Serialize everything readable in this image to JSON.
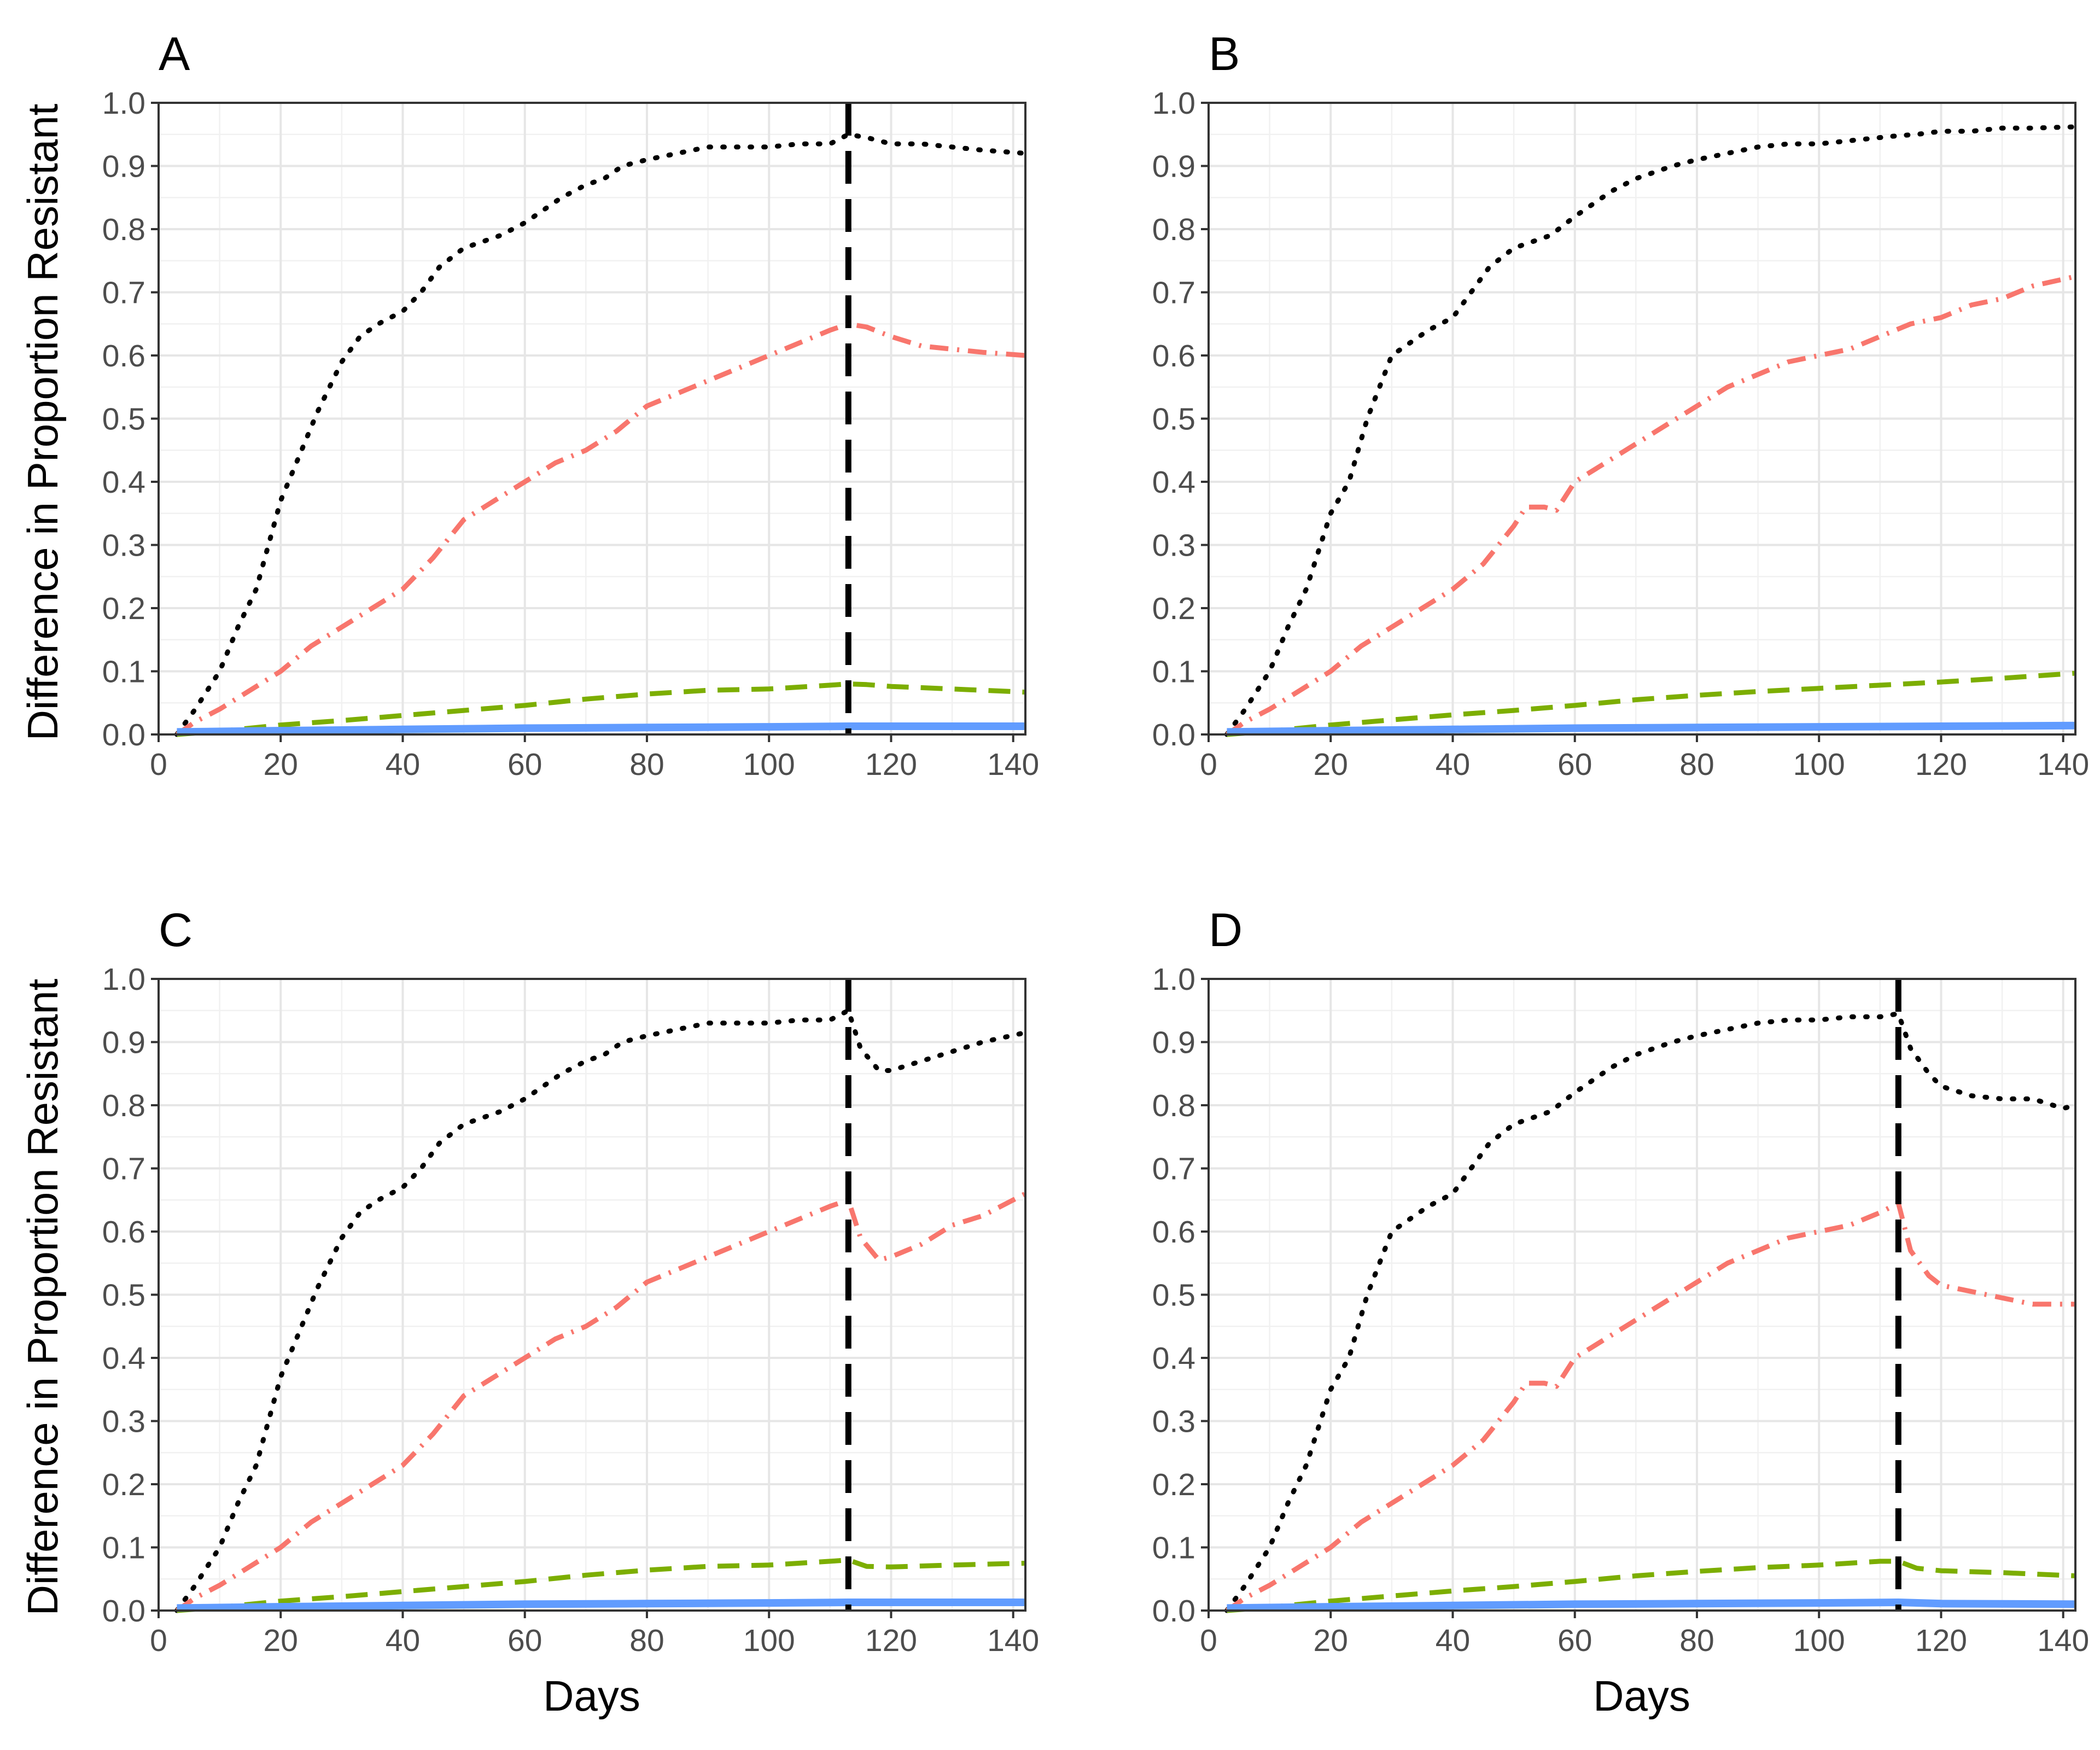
{
  "figure": {
    "y_axis_title": "Difference in Proportion Resistant",
    "x_axis_title": "Days"
  },
  "chart_data": [
    {
      "panel": "A",
      "type": "line",
      "xlim": [
        0,
        142
      ],
      "ylim": [
        0,
        1.0
      ],
      "x_ticks": [
        0,
        20,
        40,
        60,
        80,
        100,
        120,
        140
      ],
      "y_ticks": [
        0.0,
        0.1,
        0.2,
        0.3,
        0.4,
        0.5,
        0.6,
        0.7,
        0.8,
        0.9,
        1.0
      ],
      "vline_x": 113,
      "series": [
        {
          "color": "#000000",
          "dash": "dotted",
          "x": [
            3,
            6,
            10,
            13,
            16,
            20,
            23,
            26,
            30,
            33,
            36,
            40,
            43,
            46,
            50,
            53,
            56,
            60,
            63,
            66,
            70,
            73,
            76,
            80,
            85,
            90,
            95,
            100,
            105,
            110,
            113,
            116,
            120,
            125,
            130,
            135,
            142
          ],
          "y": [
            0,
            0.04,
            0.1,
            0.17,
            0.23,
            0.37,
            0.44,
            0.51,
            0.59,
            0.63,
            0.65,
            0.67,
            0.7,
            0.74,
            0.77,
            0.78,
            0.79,
            0.81,
            0.83,
            0.85,
            0.87,
            0.88,
            0.9,
            0.91,
            0.92,
            0.93,
            0.93,
            0.93,
            0.935,
            0.935,
            0.95,
            0.945,
            0.935,
            0.935,
            0.93,
            0.925,
            0.92
          ]
        },
        {
          "color": "#f8766d",
          "dash": "dotdash",
          "x": [
            3,
            6,
            10,
            15,
            20,
            25,
            30,
            35,
            40,
            45,
            50,
            55,
            60,
            65,
            70,
            75,
            80,
            85,
            90,
            95,
            100,
            105,
            110,
            113,
            116,
            120,
            125,
            130,
            135,
            142
          ],
          "y": [
            0,
            0.02,
            0.04,
            0.07,
            0.1,
            0.14,
            0.17,
            0.2,
            0.23,
            0.28,
            0.34,
            0.37,
            0.4,
            0.43,
            0.45,
            0.48,
            0.52,
            0.54,
            0.56,
            0.58,
            0.6,
            0.62,
            0.64,
            0.65,
            0.645,
            0.63,
            0.615,
            0.61,
            0.605,
            0.6
          ]
        },
        {
          "color": "#7cae00",
          "dash": "dashed",
          "x": [
            3,
            10,
            20,
            30,
            40,
            50,
            60,
            70,
            80,
            90,
            100,
            105,
            110,
            113,
            116,
            120,
            130,
            142
          ],
          "y": [
            0,
            0.005,
            0.015,
            0.022,
            0.03,
            0.038,
            0.046,
            0.056,
            0.064,
            0.07,
            0.072,
            0.075,
            0.078,
            0.08,
            0.079,
            0.076,
            0.072,
            0.067
          ]
        },
        {
          "color": "#619cff",
          "dash": "solid",
          "x": [
            3,
            20,
            40,
            60,
            80,
            100,
            113,
            120,
            142
          ],
          "y": [
            0.004,
            0.006,
            0.008,
            0.01,
            0.011,
            0.012,
            0.013,
            0.013,
            0.013
          ]
        }
      ]
    },
    {
      "panel": "B",
      "type": "line",
      "xlim": [
        0,
        142
      ],
      "ylim": [
        0,
        1.0
      ],
      "x_ticks": [
        0,
        20,
        40,
        60,
        80,
        100,
        120,
        140
      ],
      "y_ticks": [
        0.0,
        0.1,
        0.2,
        0.3,
        0.4,
        0.5,
        0.6,
        0.7,
        0.8,
        0.9,
        1.0
      ],
      "vline_x": null,
      "series": [
        {
          "color": "#000000",
          "dash": "dotted",
          "x": [
            3,
            6,
            10,
            13,
            16,
            20,
            23,
            26,
            30,
            33,
            36,
            40,
            43,
            46,
            50,
            53,
            56,
            60,
            63,
            66,
            70,
            73,
            76,
            80,
            85,
            90,
            95,
            100,
            105,
            110,
            113,
            116,
            120,
            125,
            130,
            135,
            142
          ],
          "y": [
            0,
            0.04,
            0.1,
            0.17,
            0.23,
            0.35,
            0.4,
            0.5,
            0.6,
            0.62,
            0.64,
            0.66,
            0.7,
            0.74,
            0.77,
            0.78,
            0.79,
            0.82,
            0.84,
            0.86,
            0.88,
            0.89,
            0.9,
            0.91,
            0.92,
            0.93,
            0.935,
            0.935,
            0.94,
            0.945,
            0.948,
            0.95,
            0.955,
            0.955,
            0.96,
            0.96,
            0.962
          ]
        },
        {
          "color": "#f8766d",
          "dash": "dotdash",
          "x": [
            3,
            6,
            10,
            15,
            20,
            25,
            30,
            35,
            40,
            45,
            50,
            52,
            55,
            57,
            60,
            65,
            70,
            75,
            80,
            85,
            90,
            95,
            100,
            105,
            110,
            115,
            120,
            125,
            130,
            135,
            142
          ],
          "y": [
            0,
            0.02,
            0.04,
            0.07,
            0.1,
            0.14,
            0.17,
            0.2,
            0.23,
            0.27,
            0.33,
            0.36,
            0.36,
            0.355,
            0.4,
            0.43,
            0.46,
            0.49,
            0.52,
            0.55,
            0.57,
            0.59,
            0.6,
            0.61,
            0.63,
            0.65,
            0.66,
            0.68,
            0.69,
            0.71,
            0.725
          ]
        },
        {
          "color": "#7cae00",
          "dash": "dashed",
          "x": [
            3,
            10,
            20,
            30,
            40,
            50,
            60,
            70,
            80,
            90,
            100,
            110,
            120,
            130,
            142
          ],
          "y": [
            0,
            0.005,
            0.015,
            0.023,
            0.031,
            0.038,
            0.046,
            0.055,
            0.062,
            0.068,
            0.073,
            0.078,
            0.083,
            0.089,
            0.097
          ]
        },
        {
          "color": "#619cff",
          "dash": "solid",
          "x": [
            3,
            20,
            40,
            60,
            80,
            100,
            120,
            142
          ],
          "y": [
            0.004,
            0.006,
            0.008,
            0.01,
            0.011,
            0.012,
            0.013,
            0.014
          ]
        }
      ]
    },
    {
      "panel": "C",
      "type": "line",
      "xlim": [
        0,
        142
      ],
      "ylim": [
        0,
        1.0
      ],
      "x_ticks": [
        0,
        20,
        40,
        60,
        80,
        100,
        120,
        140
      ],
      "y_ticks": [
        0.0,
        0.1,
        0.2,
        0.3,
        0.4,
        0.5,
        0.6,
        0.7,
        0.8,
        0.9,
        1.0
      ],
      "vline_x": 113,
      "series": [
        {
          "color": "#000000",
          "dash": "dotted",
          "x": [
            3,
            6,
            10,
            13,
            16,
            20,
            23,
            26,
            30,
            33,
            36,
            40,
            43,
            46,
            50,
            53,
            56,
            60,
            63,
            66,
            70,
            73,
            76,
            80,
            85,
            90,
            95,
            100,
            105,
            110,
            113,
            115,
            118,
            120,
            125,
            130,
            135,
            142
          ],
          "y": [
            0,
            0.04,
            0.1,
            0.17,
            0.23,
            0.37,
            0.44,
            0.51,
            0.59,
            0.63,
            0.65,
            0.67,
            0.7,
            0.74,
            0.77,
            0.78,
            0.79,
            0.81,
            0.83,
            0.85,
            0.87,
            0.88,
            0.9,
            0.91,
            0.92,
            0.93,
            0.93,
            0.93,
            0.935,
            0.935,
            0.95,
            0.89,
            0.855,
            0.855,
            0.87,
            0.885,
            0.9,
            0.915
          ]
        },
        {
          "color": "#f8766d",
          "dash": "dotdash",
          "x": [
            3,
            6,
            10,
            15,
            20,
            25,
            30,
            35,
            40,
            45,
            50,
            55,
            60,
            65,
            70,
            75,
            80,
            85,
            90,
            95,
            100,
            105,
            110,
            113,
            115,
            118,
            120,
            125,
            130,
            135,
            142
          ],
          "y": [
            0,
            0.02,
            0.04,
            0.07,
            0.1,
            0.14,
            0.17,
            0.2,
            0.23,
            0.28,
            0.34,
            0.37,
            0.4,
            0.43,
            0.45,
            0.48,
            0.52,
            0.54,
            0.56,
            0.58,
            0.6,
            0.62,
            0.64,
            0.65,
            0.59,
            0.555,
            0.56,
            0.58,
            0.61,
            0.625,
            0.66
          ]
        },
        {
          "color": "#7cae00",
          "dash": "dashed",
          "x": [
            3,
            10,
            20,
            30,
            40,
            50,
            60,
            70,
            80,
            90,
            100,
            105,
            110,
            113,
            116,
            120,
            130,
            142
          ],
          "y": [
            0,
            0.005,
            0.015,
            0.022,
            0.03,
            0.038,
            0.046,
            0.056,
            0.064,
            0.07,
            0.072,
            0.075,
            0.078,
            0.08,
            0.07,
            0.069,
            0.072,
            0.075
          ]
        },
        {
          "color": "#619cff",
          "dash": "solid",
          "x": [
            3,
            20,
            40,
            60,
            80,
            100,
            113,
            120,
            142
          ],
          "y": [
            0.004,
            0.006,
            0.008,
            0.01,
            0.011,
            0.012,
            0.013,
            0.013,
            0.013
          ]
        }
      ]
    },
    {
      "panel": "D",
      "type": "line",
      "xlim": [
        0,
        142
      ],
      "ylim": [
        0,
        1.0
      ],
      "x_ticks": [
        0,
        20,
        40,
        60,
        80,
        100,
        120,
        140
      ],
      "y_ticks": [
        0.0,
        0.1,
        0.2,
        0.3,
        0.4,
        0.5,
        0.6,
        0.7,
        0.8,
        0.9,
        1.0
      ],
      "vline_x": 113,
      "series": [
        {
          "color": "#000000",
          "dash": "dotted",
          "x": [
            3,
            6,
            10,
            13,
            16,
            20,
            23,
            26,
            30,
            33,
            36,
            40,
            43,
            46,
            50,
            53,
            56,
            60,
            63,
            66,
            70,
            73,
            76,
            80,
            85,
            90,
            95,
            100,
            105,
            110,
            113,
            115,
            118,
            120,
            125,
            130,
            135,
            140,
            142
          ],
          "y": [
            0,
            0.04,
            0.1,
            0.17,
            0.23,
            0.35,
            0.4,
            0.5,
            0.6,
            0.62,
            0.64,
            0.66,
            0.7,
            0.74,
            0.77,
            0.78,
            0.79,
            0.82,
            0.84,
            0.86,
            0.88,
            0.89,
            0.9,
            0.91,
            0.92,
            0.93,
            0.935,
            0.935,
            0.94,
            0.94,
            0.945,
            0.89,
            0.85,
            0.83,
            0.815,
            0.81,
            0.81,
            0.795,
            0.8
          ]
        },
        {
          "color": "#f8766d",
          "dash": "dotdash",
          "x": [
            3,
            6,
            10,
            15,
            20,
            25,
            30,
            35,
            40,
            45,
            50,
            52,
            55,
            57,
            60,
            65,
            70,
            75,
            80,
            85,
            90,
            95,
            100,
            105,
            110,
            113,
            115,
            118,
            120,
            125,
            130,
            135,
            142
          ],
          "y": [
            0,
            0.02,
            0.04,
            0.07,
            0.1,
            0.14,
            0.17,
            0.2,
            0.23,
            0.27,
            0.33,
            0.36,
            0.36,
            0.355,
            0.4,
            0.43,
            0.46,
            0.49,
            0.52,
            0.55,
            0.57,
            0.59,
            0.6,
            0.61,
            0.63,
            0.645,
            0.57,
            0.53,
            0.515,
            0.505,
            0.495,
            0.485,
            0.485
          ]
        },
        {
          "color": "#7cae00",
          "dash": "dashed",
          "x": [
            3,
            10,
            20,
            30,
            40,
            50,
            60,
            70,
            80,
            90,
            100,
            105,
            110,
            113,
            116,
            120,
            130,
            142
          ],
          "y": [
            0,
            0.005,
            0.015,
            0.023,
            0.031,
            0.038,
            0.046,
            0.055,
            0.062,
            0.068,
            0.072,
            0.075,
            0.078,
            0.078,
            0.067,
            0.063,
            0.06,
            0.055
          ]
        },
        {
          "color": "#619cff",
          "dash": "solid",
          "x": [
            3,
            20,
            40,
            60,
            80,
            100,
            113,
            120,
            142
          ],
          "y": [
            0.004,
            0.006,
            0.008,
            0.01,
            0.011,
            0.012,
            0.013,
            0.011,
            0.01
          ]
        }
      ]
    }
  ]
}
